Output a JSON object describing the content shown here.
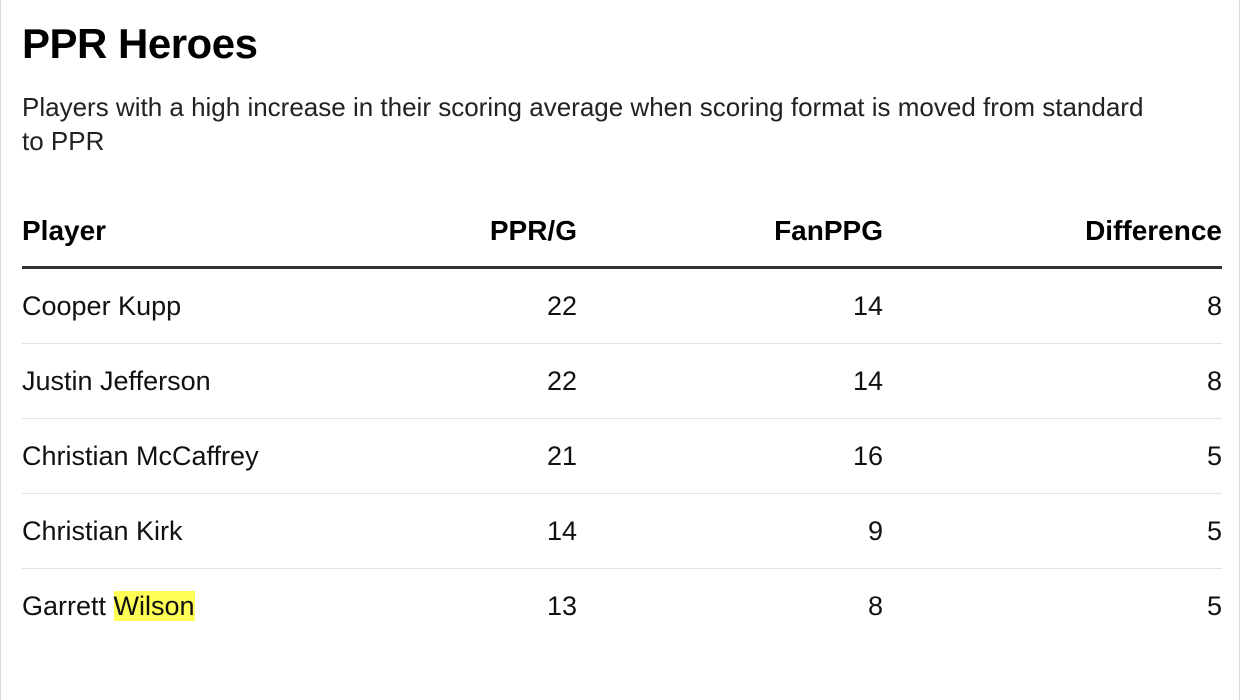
{
  "title": "PPR Heroes",
  "subtitle": "Players with a high increase in their scoring average when scoring format is moved from standard to PPR",
  "chart_data": {
    "type": "table",
    "title": "PPR Heroes",
    "subtitle": "Players with a high increase in their scoring average when scoring format is moved from standard to PPR",
    "columns": [
      "Player",
      "PPR/G",
      "FanPPG",
      "Difference"
    ],
    "rows": [
      {
        "player": "Cooper Kupp",
        "ppr_g": "22",
        "fanppg": "14",
        "difference": "8"
      },
      {
        "player": "Justin Jefferson",
        "ppr_g": "22",
        "fanppg": "14",
        "difference": "8"
      },
      {
        "player": "Christian McCaffrey",
        "ppr_g": "21",
        "fanppg": "16",
        "difference": "5"
      },
      {
        "player": "Christian Kirk",
        "ppr_g": "14",
        "fanppg": "9",
        "difference": "5"
      },
      {
        "player_first": "Garrett",
        "player_highlight": "Wilson",
        "ppr_g": "13",
        "fanppg": "8",
        "difference": "5"
      }
    ]
  },
  "colors": {
    "highlight": "#ffff55",
    "header_rule": "#333333",
    "row_rule": "#e3e3e3"
  }
}
